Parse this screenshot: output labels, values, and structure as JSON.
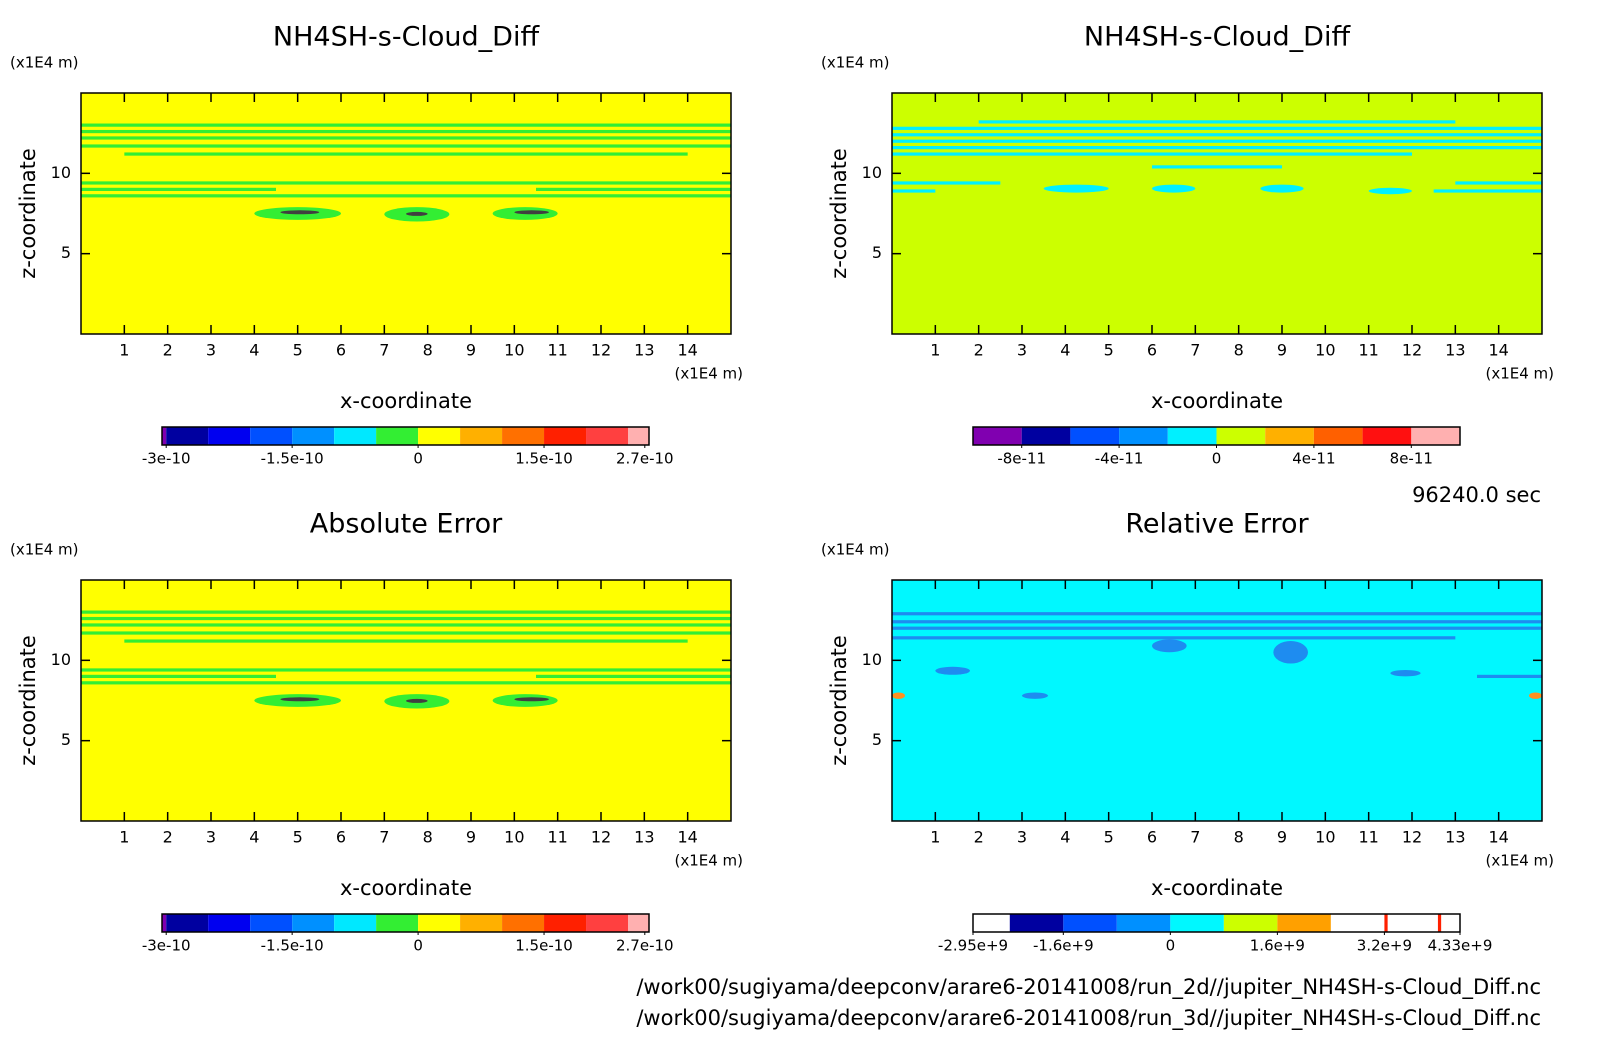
{
  "chart_data": [
    {
      "type": "contour",
      "title": "NH4SH-s-Cloud_Diff",
      "xlabel": "x-coordinate",
      "ylabel": "z-coordinate",
      "xunit": "(x1E4 m)",
      "yunit": "(x1E4 m)",
      "xlim": [
        0,
        15
      ],
      "ylim": [
        0,
        15
      ],
      "xticks": [
        1,
        2,
        3,
        4,
        5,
        6,
        7,
        8,
        9,
        10,
        11,
        12,
        13,
        14
      ],
      "yticks": [
        5,
        10
      ],
      "background": "#ffff00",
      "stripes": [
        {
          "z": 13.0,
          "x": [
            0,
            15
          ],
          "color": "#33ee33"
        },
        {
          "z": 12.6,
          "x": [
            0,
            15
          ],
          "color": "#33ee33"
        },
        {
          "z": 12.2,
          "x": [
            0,
            15
          ],
          "color": "#33ee33"
        },
        {
          "z": 11.7,
          "x": [
            0,
            15
          ],
          "color": "#33ee33"
        },
        {
          "z": 11.2,
          "x": [
            1,
            14
          ],
          "color": "#33ee33"
        },
        {
          "z": 9.4,
          "x": [
            0,
            15
          ],
          "color": "#33ee33"
        },
        {
          "z": 9.0,
          "x": [
            0,
            4.5
          ],
          "color": "#33ee33"
        },
        {
          "z": 9.0,
          "x": [
            10.5,
            15
          ],
          "color": "#33ee33"
        },
        {
          "z": 8.6,
          "x": [
            0,
            15
          ],
          "color": "#33ee33"
        }
      ],
      "cells": [
        {
          "x": [
            4,
            6
          ],
          "z": [
            7.1,
            7.9
          ],
          "color": "#33ee33"
        },
        {
          "x": [
            7,
            8.5
          ],
          "z": [
            7.0,
            7.9
          ],
          "color": "#33ee33"
        },
        {
          "x": [
            9.5,
            11
          ],
          "z": [
            7.1,
            7.9
          ],
          "color": "#33ee33"
        },
        {
          "x": [
            4.6,
            5.5
          ],
          "z": [
            7.45,
            7.7
          ],
          "color": "#404040"
        },
        {
          "x": [
            7.5,
            8
          ],
          "z": [
            7.35,
            7.6
          ],
          "color": "#404040"
        },
        {
          "x": [
            10,
            10.8
          ],
          "z": [
            7.45,
            7.7
          ],
          "color": "#404040"
        }
      ],
      "colorbar": {
        "levels": [
          -3.05e-10,
          -3e-10,
          -2.5e-10,
          -2e-10,
          -1.5e-10,
          -1e-10,
          -5e-11,
          0,
          5e-11,
          1e-10,
          1.5e-10,
          2e-10,
          2.5e-10,
          2.75e-10
        ],
        "colors": [
          "#8000b0",
          "#0000a0",
          "#0000f0",
          "#0050ff",
          "#0090ff",
          "#00e8ff",
          "#33ee33",
          "#ffff00",
          "#ffb000",
          "#ff7000",
          "#ff2000",
          "#ff4040",
          "#ffb0b0"
        ],
        "ticks": [
          -3e-10,
          -1.5e-10,
          0,
          1.5e-10,
          2.7e-10
        ]
      }
    },
    {
      "type": "contour",
      "title": "NH4SH-s-Cloud_Diff",
      "xlabel": "x-coordinate",
      "ylabel": "z-coordinate",
      "xunit": "(x1E4 m)",
      "yunit": "(x1E4 m)",
      "xlim": [
        0,
        15
      ],
      "ylim": [
        0,
        15
      ],
      "xticks": [
        1,
        2,
        3,
        4,
        5,
        6,
        7,
        8,
        9,
        10,
        11,
        12,
        13,
        14
      ],
      "yticks": [
        5,
        10
      ],
      "background": "#ccff00",
      "stripes": [
        {
          "z": 13.2,
          "x": [
            2,
            13
          ],
          "color": "#00f0ff"
        },
        {
          "z": 12.8,
          "x": [
            0,
            15
          ],
          "color": "#00f0ff"
        },
        {
          "z": 12.4,
          "x": [
            0,
            15
          ],
          "color": "#00f0ff"
        },
        {
          "z": 12.0,
          "x": [
            0,
            15
          ],
          "color": "#00f0ff"
        },
        {
          "z": 11.6,
          "x": [
            0,
            15
          ],
          "color": "#00f0ff"
        },
        {
          "z": 11.2,
          "x": [
            0,
            12
          ],
          "color": "#00f0ff"
        },
        {
          "z": 10.4,
          "x": [
            6,
            9
          ],
          "color": "#00f0ff"
        },
        {
          "z": 9.4,
          "x": [
            0,
            2.5
          ],
          "color": "#00f0ff"
        },
        {
          "z": 9.4,
          "x": [
            13,
            15
          ],
          "color": "#00f0ff"
        },
        {
          "z": 8.9,
          "x": [
            0,
            1
          ],
          "color": "#00f0ff"
        },
        {
          "z": 8.9,
          "x": [
            12.5,
            15
          ],
          "color": "#00f0ff"
        }
      ],
      "cells": [
        {
          "x": [
            3.5,
            5
          ],
          "z": [
            8.8,
            9.3
          ],
          "color": "#00f0ff"
        },
        {
          "x": [
            6,
            7
          ],
          "z": [
            8.8,
            9.3
          ],
          "color": "#00f0ff"
        },
        {
          "x": [
            8.5,
            9.5
          ],
          "z": [
            8.8,
            9.3
          ],
          "color": "#00f0ff"
        },
        {
          "x": [
            11,
            12
          ],
          "z": [
            8.7,
            9.1
          ],
          "color": "#00f0ff"
        }
      ],
      "colorbar": {
        "levels": [
          -1e-10,
          -8e-11,
          -6e-11,
          -4e-11,
          -2e-11,
          0,
          2e-11,
          4e-11,
          6e-11,
          8e-11,
          1e-10
        ],
        "colors": [
          "#8000b0",
          "#0000a0",
          "#0050ff",
          "#0090ff",
          "#00f0ff",
          "#ccff00",
          "#ffb000",
          "#ff6000",
          "#ff1010",
          "#ffb0b0"
        ],
        "ticks": [
          -8e-11,
          -4e-11,
          0,
          4e-11,
          8e-11
        ]
      }
    },
    {
      "type": "contour",
      "title": "Absolute Error",
      "xlabel": "x-coordinate",
      "ylabel": "z-coordinate",
      "xunit": "(x1E4 m)",
      "yunit": "(x1E4 m)",
      "xlim": [
        0,
        15
      ],
      "ylim": [
        0,
        15
      ],
      "xticks": [
        1,
        2,
        3,
        4,
        5,
        6,
        7,
        8,
        9,
        10,
        11,
        12,
        13,
        14
      ],
      "yticks": [
        5,
        10
      ],
      "background": "#ffff00",
      "stripes": [
        {
          "z": 13.0,
          "x": [
            0,
            15
          ],
          "color": "#33ee33"
        },
        {
          "z": 12.6,
          "x": [
            0,
            15
          ],
          "color": "#33ee33"
        },
        {
          "z": 12.2,
          "x": [
            0,
            15
          ],
          "color": "#33ee33"
        },
        {
          "z": 11.7,
          "x": [
            0,
            15
          ],
          "color": "#33ee33"
        },
        {
          "z": 11.2,
          "x": [
            1,
            14
          ],
          "color": "#33ee33"
        },
        {
          "z": 9.4,
          "x": [
            0,
            15
          ],
          "color": "#33ee33"
        },
        {
          "z": 9.0,
          "x": [
            0,
            4.5
          ],
          "color": "#33ee33"
        },
        {
          "z": 9.0,
          "x": [
            10.5,
            15
          ],
          "color": "#33ee33"
        },
        {
          "z": 8.6,
          "x": [
            0,
            15
          ],
          "color": "#33ee33"
        }
      ],
      "cells": [
        {
          "x": [
            4,
            6
          ],
          "z": [
            7.1,
            7.9
          ],
          "color": "#33ee33"
        },
        {
          "x": [
            7,
            8.5
          ],
          "z": [
            7.0,
            7.9
          ],
          "color": "#33ee33"
        },
        {
          "x": [
            9.5,
            11
          ],
          "z": [
            7.1,
            7.9
          ],
          "color": "#33ee33"
        },
        {
          "x": [
            4.6,
            5.5
          ],
          "z": [
            7.45,
            7.7
          ],
          "color": "#404040"
        },
        {
          "x": [
            7.5,
            8
          ],
          "z": [
            7.35,
            7.6
          ],
          "color": "#404040"
        },
        {
          "x": [
            10,
            10.8
          ],
          "z": [
            7.45,
            7.7
          ],
          "color": "#404040"
        }
      ],
      "colorbar": {
        "levels": [
          -3.05e-10,
          -3e-10,
          -2.5e-10,
          -2e-10,
          -1.5e-10,
          -1e-10,
          -5e-11,
          0,
          5e-11,
          1e-10,
          1.5e-10,
          2e-10,
          2.5e-10,
          2.75e-10
        ],
        "colors": [
          "#8000b0",
          "#0000a0",
          "#0000f0",
          "#0050ff",
          "#0090ff",
          "#00e8ff",
          "#33ee33",
          "#ffff00",
          "#ffb000",
          "#ff7000",
          "#ff2000",
          "#ff4040",
          "#ffb0b0"
        ],
        "ticks": [
          -3e-10,
          -1.5e-10,
          0,
          1.5e-10,
          2.7e-10
        ]
      }
    },
    {
      "type": "contour",
      "title": "Relative Error",
      "xlabel": "x-coordinate",
      "ylabel": "z-coordinate",
      "xunit": "(x1E4 m)",
      "yunit": "(x1E4 m)",
      "xlim": [
        0,
        15
      ],
      "ylim": [
        0,
        15
      ],
      "xticks": [
        1,
        2,
        3,
        4,
        5,
        6,
        7,
        8,
        9,
        10,
        11,
        12,
        13,
        14
      ],
      "yticks": [
        5,
        10
      ],
      "background": "#00f8ff",
      "stripes": [
        {
          "z": 12.9,
          "x": [
            0,
            15
          ],
          "color": "#1e8cf0"
        },
        {
          "z": 12.4,
          "x": [
            0,
            15
          ],
          "color": "#1e8cf0"
        },
        {
          "z": 12.0,
          "x": [
            0,
            15
          ],
          "color": "#1e8cf0"
        },
        {
          "z": 11.4,
          "x": [
            0,
            13
          ],
          "color": "#1e8cf0"
        },
        {
          "z": 9.0,
          "x": [
            13.5,
            15
          ],
          "color": "#1e8cf0"
        }
      ],
      "cells": [
        {
          "x": [
            6,
            6.8
          ],
          "z": [
            10.5,
            11.3
          ],
          "color": "#1e8cf0"
        },
        {
          "x": [
            8.8,
            9.6
          ],
          "z": [
            9.8,
            11.2
          ],
          "color": "#1e8cf0"
        },
        {
          "x": [
            1,
            1.8
          ],
          "z": [
            9.1,
            9.6
          ],
          "color": "#1e8cf0"
        },
        {
          "x": [
            11.5,
            12.2
          ],
          "z": [
            9.0,
            9.4
          ],
          "color": "#1e8cf0"
        },
        {
          "x": [
            3,
            3.6
          ],
          "z": [
            7.6,
            8.0
          ],
          "color": "#1e8cf0"
        },
        {
          "x": [
            0,
            0.3
          ],
          "z": [
            7.6,
            8.0
          ],
          "color": "#ff9020"
        },
        {
          "x": [
            14.7,
            15
          ],
          "z": [
            7.6,
            8.0
          ],
          "color": "#ff9020"
        }
      ],
      "colorbar": {
        "levels": [
          -2950000000.0,
          -2400000000.0,
          -1600000000.0,
          -800000000.0,
          0,
          800000000.0,
          1600000000.0,
          2400000000.0,
          3200000000.0,
          3250000000.0,
          4000000000.0,
          4050000000.0,
          4330000000.0
        ],
        "colors": [
          "#ffffff",
          "#0000a0",
          "#0050ff",
          "#0090ff",
          "#00f8ff",
          "#ccff00",
          "#ffa000",
          "#ffffff",
          "#ff2000",
          "#ffffff",
          "#ff2000",
          "#ffffff"
        ],
        "ticks": [
          {
            "value": -2950000000.0,
            "label": "-2.95e+9"
          },
          {
            "value": -1600000000.0,
            "label": "-1.6e+9"
          },
          0,
          {
            "value": 1600000000.0,
            "label": "1.6e+9"
          },
          {
            "value": 3200000000.0,
            "label": "3.2e+9"
          },
          {
            "value": 4330000000.0,
            "label": "4.33e+9"
          }
        ]
      }
    }
  ],
  "footer": {
    "time": "96240.0 sec",
    "files": [
      "/work00/sugiyama/deepconv/arare6-20141008/run_2d//jupiter_NH4SH-s-Cloud_Diff.nc",
      "/work00/sugiyama/deepconv/arare6-20141008/run_3d//jupiter_NH4SH-s-Cloud_Diff.nc"
    ]
  }
}
